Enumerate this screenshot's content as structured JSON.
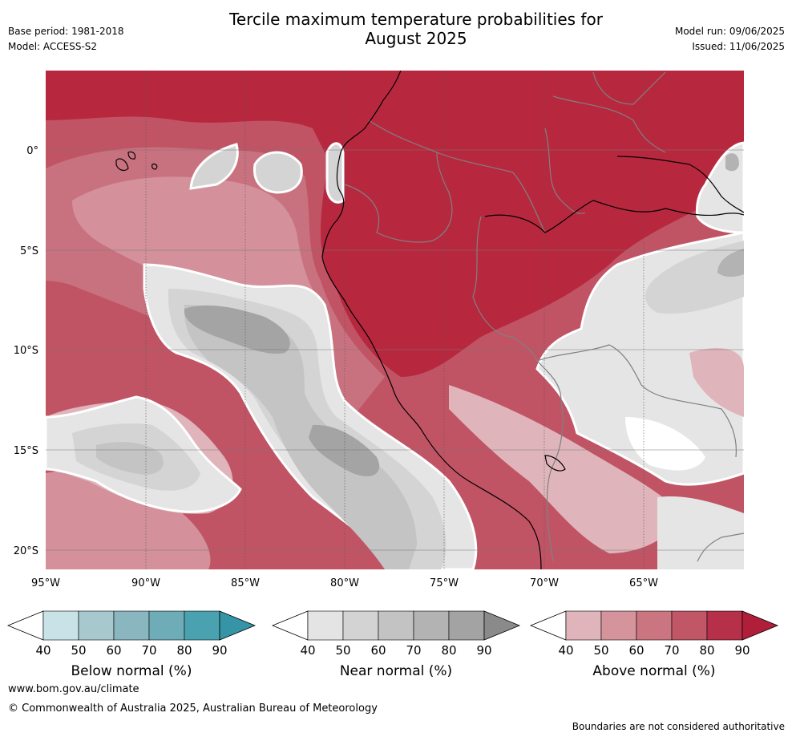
{
  "header": {
    "title_line1": "Tercile maximum temperature probabilities for",
    "title_line2": "August 2025",
    "base_period": "Base period: 1981-2018",
    "model": "Model: ACCESS-S2",
    "model_run": "Model run: 09/06/2025",
    "issued": "Issued: 11/06/2025"
  },
  "map": {
    "lon_labels": [
      "95°W",
      "90°W",
      "85°W",
      "80°W",
      "75°W",
      "70°W",
      "65°W"
    ],
    "lat_labels": [
      "0°",
      "5°S",
      "10°S",
      "15°S",
      "20°S"
    ],
    "colors": {
      "above": [
        "#ffffff",
        "#dfb5bb",
        "#d4919b",
        "#c9727f",
        "#c05465",
        "#b7283f"
      ],
      "near": [
        "#ffffff",
        "#e5e5e5",
        "#d4d4d4",
        "#c4c4c4",
        "#b3b3b3",
        "#a4a4a4"
      ],
      "below": [
        "#ffffff",
        "#c8e3e8",
        "#a6c9cf",
        "#88b5bf",
        "#6aa9b6",
        "#4aa1b0"
      ],
      "coast": "#000000",
      "border": "#808080"
    }
  },
  "colorbars": [
    {
      "label": "Below normal (%)",
      "ticks": [
        "40",
        "50",
        "60",
        "70",
        "80",
        "90"
      ],
      "colors": [
        "#ffffff",
        "#c9e2e7",
        "#a7c8cd",
        "#8ab6c0",
        "#6eadb8",
        "#4aa2b1",
        "#3594a5"
      ]
    },
    {
      "label": "Near normal (%)",
      "ticks": [
        "40",
        "50",
        "60",
        "70",
        "80",
        "90"
      ],
      "colors": [
        "#ffffff",
        "#e4e4e4",
        "#d3d3d3",
        "#c3c3c3",
        "#b3b3b3",
        "#a3a3a3",
        "#8a8a8a"
      ]
    },
    {
      "label": "Above normal (%)",
      "ticks": [
        "40",
        "50",
        "60",
        "70",
        "80",
        "90"
      ],
      "colors": [
        "#ffffff",
        "#dfb5bb",
        "#d5939c",
        "#cb7581",
        "#c15667",
        "#b7304a",
        "#b01e3a"
      ]
    }
  ],
  "footer": {
    "url": "www.bom.gov.au/climate",
    "copyright": "© Commonwealth of Australia 2025, Australian Bureau of Meteorology",
    "note": "Boundaries are not considered authoritative"
  }
}
